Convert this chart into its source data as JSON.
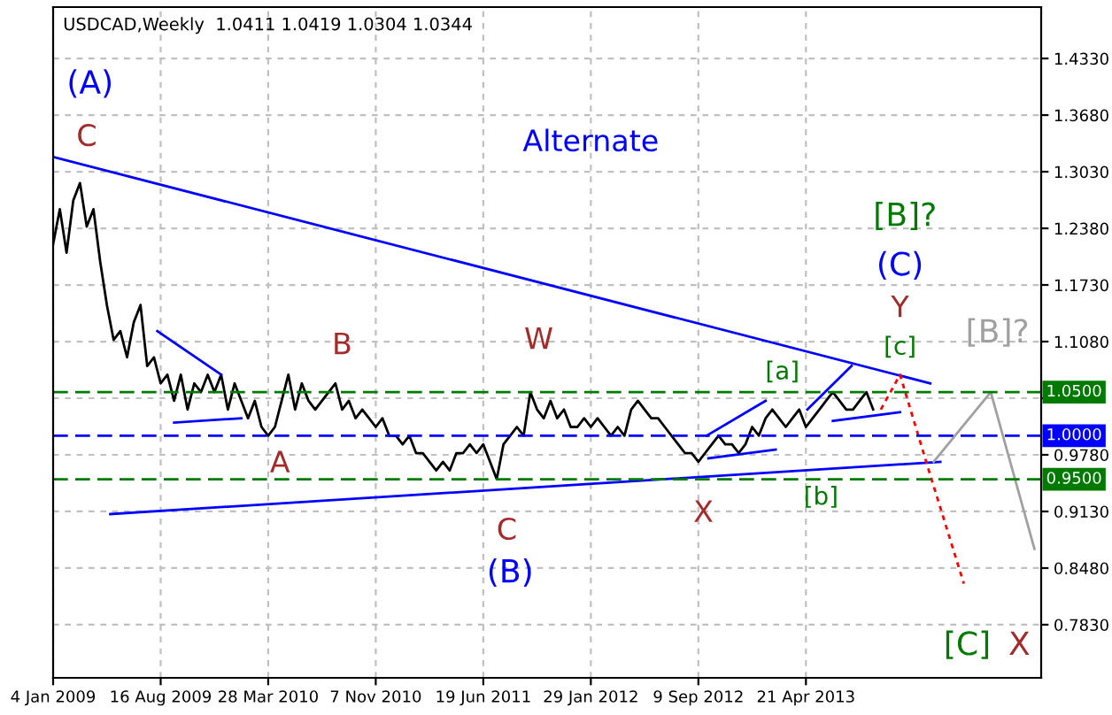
{
  "chart_data": {
    "type": "line",
    "title": "USDCAD,Weekly  1.0411 1.0419 1.0304 1.0344",
    "xlim": [
      "2009-01-04",
      "2014-08-24"
    ],
    "ylim": [
      0.722,
      1.492
    ],
    "xticks": [
      {
        "value": "2009-01-04",
        "label": "4 Jan 2009"
      },
      {
        "value": "2009-08-16",
        "label": "16 Aug 2009"
      },
      {
        "value": "2010-03-28",
        "label": "28 Mar 2010"
      },
      {
        "value": "2010-11-07",
        "label": "7 Nov 2010"
      },
      {
        "value": "2011-06-19",
        "label": "19 Jun 2011"
      },
      {
        "value": "2012-01-29",
        "label": "29 Jan 2012"
      },
      {
        "value": "2012-09-09",
        "label": "9 Sep 2012"
      },
      {
        "value": "2013-04-21",
        "label": "21 Apr 2013"
      }
    ],
    "yticks": [
      {
        "value": 0.783,
        "label": "0.7830"
      },
      {
        "value": 0.848,
        "label": "0.8480"
      },
      {
        "value": 0.913,
        "label": "0.9130"
      },
      {
        "value": 0.978,
        "label": "0.9780"
      },
      {
        "value": 1.043,
        "label": null
      },
      {
        "value": 1.108,
        "label": "1.1080"
      },
      {
        "value": 1.173,
        "label": "1.1730"
      },
      {
        "value": 1.238,
        "label": "1.2380"
      },
      {
        "value": 1.303,
        "label": "1.3030"
      },
      {
        "value": 1.368,
        "label": "1.3680"
      },
      {
        "value": 1.433,
        "label": "1.4330"
      }
    ],
    "grid": true,
    "legend": false,
    "marker": "none",
    "series": [
      {
        "color": "#000000",
        "x": [
          "2009-01-04",
          "2009-01-18",
          "2009-02-01",
          "2009-02-15",
          "2009-03-01",
          "2009-03-15",
          "2009-03-29",
          "2009-04-12",
          "2009-04-26",
          "2009-05-10",
          "2009-05-24",
          "2009-06-07",
          "2009-06-21",
          "2009-07-05",
          "2009-07-19",
          "2009-08-02",
          "2009-08-16",
          "2009-08-30",
          "2009-09-13",
          "2009-09-27",
          "2009-10-11",
          "2009-10-25",
          "2009-11-08",
          "2009-11-22",
          "2009-12-06",
          "2009-12-20",
          "2010-01-03",
          "2010-01-17",
          "2010-01-31",
          "2010-02-14",
          "2010-02-28",
          "2010-03-14",
          "2010-03-28",
          "2010-04-11",
          "2010-04-25",
          "2010-05-09",
          "2010-05-23",
          "2010-06-06",
          "2010-06-20",
          "2010-07-04",
          "2010-07-18",
          "2010-08-01",
          "2010-08-15",
          "2010-08-29",
          "2010-09-12",
          "2010-09-26",
          "2010-10-10",
          "2010-10-24",
          "2010-11-07",
          "2010-11-21",
          "2010-12-05",
          "2010-12-19",
          "2011-01-02",
          "2011-01-16",
          "2011-01-30",
          "2011-02-13",
          "2011-02-27",
          "2011-03-13",
          "2011-03-27",
          "2011-04-10",
          "2011-04-24",
          "2011-05-08",
          "2011-05-22",
          "2011-06-05",
          "2011-06-19",
          "2011-07-03",
          "2011-07-17",
          "2011-07-31",
          "2011-08-14",
          "2011-08-28",
          "2011-09-11",
          "2011-09-25",
          "2011-10-09",
          "2011-10-23",
          "2011-11-06",
          "2011-11-20",
          "2011-12-04",
          "2011-12-18",
          "2012-01-01",
          "2012-01-15",
          "2012-01-29",
          "2012-02-12",
          "2012-02-26",
          "2012-03-11",
          "2012-03-25",
          "2012-04-08",
          "2012-04-22",
          "2012-05-06",
          "2012-05-20",
          "2012-06-03",
          "2012-06-17",
          "2012-07-01",
          "2012-07-15",
          "2012-07-29",
          "2012-08-12",
          "2012-08-26",
          "2012-09-09",
          "2012-09-23",
          "2012-10-07",
          "2012-10-21",
          "2012-11-04",
          "2012-11-18",
          "2012-12-02",
          "2012-12-16",
          "2012-12-30",
          "2013-01-13",
          "2013-01-27",
          "2013-02-10",
          "2013-02-24",
          "2013-03-10",
          "2013-03-24",
          "2013-04-07",
          "2013-04-21",
          "2013-05-05",
          "2013-05-19",
          "2013-06-02",
          "2013-06-16",
          "2013-06-30",
          "2013-07-14",
          "2013-07-28",
          "2013-08-11",
          "2013-08-25",
          "2013-09-08"
        ],
        "values": [
          1.22,
          1.26,
          1.21,
          1.27,
          1.29,
          1.24,
          1.26,
          1.2,
          1.15,
          1.11,
          1.12,
          1.09,
          1.13,
          1.15,
          1.08,
          1.09,
          1.06,
          1.07,
          1.04,
          1.07,
          1.03,
          1.06,
          1.05,
          1.07,
          1.05,
          1.07,
          1.03,
          1.06,
          1.04,
          1.02,
          1.04,
          1.01,
          1.0,
          1.01,
          1.04,
          1.07,
          1.03,
          1.06,
          1.04,
          1.03,
          1.04,
          1.05,
          1.06,
          1.03,
          1.04,
          1.02,
          1.03,
          1.02,
          1.01,
          1.02,
          1.0,
          1.0,
          0.99,
          1.0,
          0.98,
          0.98,
          0.97,
          0.96,
          0.97,
          0.96,
          0.98,
          0.98,
          0.99,
          0.98,
          0.99,
          0.97,
          0.95,
          0.99,
          1.0,
          1.01,
          1.0,
          1.05,
          1.03,
          1.02,
          1.04,
          1.02,
          1.03,
          1.01,
          1.01,
          1.02,
          1.01,
          1.02,
          1.01,
          1.0,
          1.01,
          1.0,
          1.03,
          1.04,
          1.03,
          1.02,
          1.02,
          1.01,
          1.0,
          0.99,
          0.98,
          0.98,
          0.97,
          0.98,
          0.99,
          1.0,
          0.99,
          0.99,
          0.98,
          0.99,
          1.01,
          1.0,
          1.02,
          1.03,
          1.02,
          1.01,
          1.02,
          1.03,
          1.01,
          1.02,
          1.03,
          1.04,
          1.05,
          1.04,
          1.03,
          1.03,
          1.04,
          1.05,
          1.03
        ]
      },
      {
        "color": "#0000ff",
        "x": [
          "2009-01-04",
          "2014-01-05"
        ],
        "values": [
          1.32,
          1.06
        ]
      },
      {
        "color": "#0000ff",
        "x": [
          "2009-05-03",
          "2014-01-26"
        ],
        "values": [
          0.91,
          0.97
        ]
      },
      {
        "color": "#0000ff",
        "x": [
          "2009-08-09",
          "2009-12-20"
        ],
        "values": [
          1.12,
          1.07
        ]
      },
      {
        "color": "#0000ff",
        "x": [
          "2009-09-13",
          "2010-01-31"
        ],
        "values": [
          1.015,
          1.02
        ]
      },
      {
        "color": "#0000ff",
        "x": [
          "2012-09-26",
          "2013-01-27"
        ],
        "values": [
          1.0,
          1.04
        ]
      },
      {
        "color": "#0000ff",
        "x": [
          "2012-09-30",
          "2013-02-17"
        ],
        "values": [
          0.974,
          0.984
        ]
      },
      {
        "color": "#0000ff",
        "x": [
          "2013-04-24",
          "2013-07-25"
        ],
        "values": [
          1.03,
          1.08
        ]
      },
      {
        "color": "#0000ff",
        "x": [
          "2013-06-16",
          "2013-11-03"
        ],
        "values": [
          1.017,
          1.027
        ]
      },
      {
        "color": "#ff0000",
        "line_style": "dotted",
        "x": [
          "2013-09-24",
          "2013-11-03",
          "2014-01-02",
          "2014-03-16"
        ],
        "values": [
          1.03,
          1.07,
          0.96,
          0.83
        ]
      },
      {
        "color": "#a0a0a0",
        "x": [
          "2014-01-12",
          "2014-05-11",
          "2014-08-10"
        ],
        "values": [
          0.97,
          1.05,
          0.87
        ]
      }
    ],
    "ref_lines": [
      {
        "axis": "y",
        "value": 1.05,
        "label": "1.0500",
        "color": "#007a00",
        "line_style": "dashed"
      },
      {
        "axis": "y",
        "value": 1.0,
        "label": "1.0000",
        "color": "#0000ff",
        "line_style": "dashed"
      },
      {
        "axis": "y",
        "value": 0.95,
        "label": "0.9500",
        "color": "#007a00",
        "line_style": "dashed"
      }
    ],
    "annotations": [
      "(A)",
      "C",
      "Alternate",
      "B",
      "W",
      "A",
      "C",
      "(B)",
      "X",
      "[a]",
      "[b]",
      "[c]",
      "Y",
      "(C)",
      "[B]?",
      "[B]?",
      "[C]",
      "X"
    ]
  }
}
